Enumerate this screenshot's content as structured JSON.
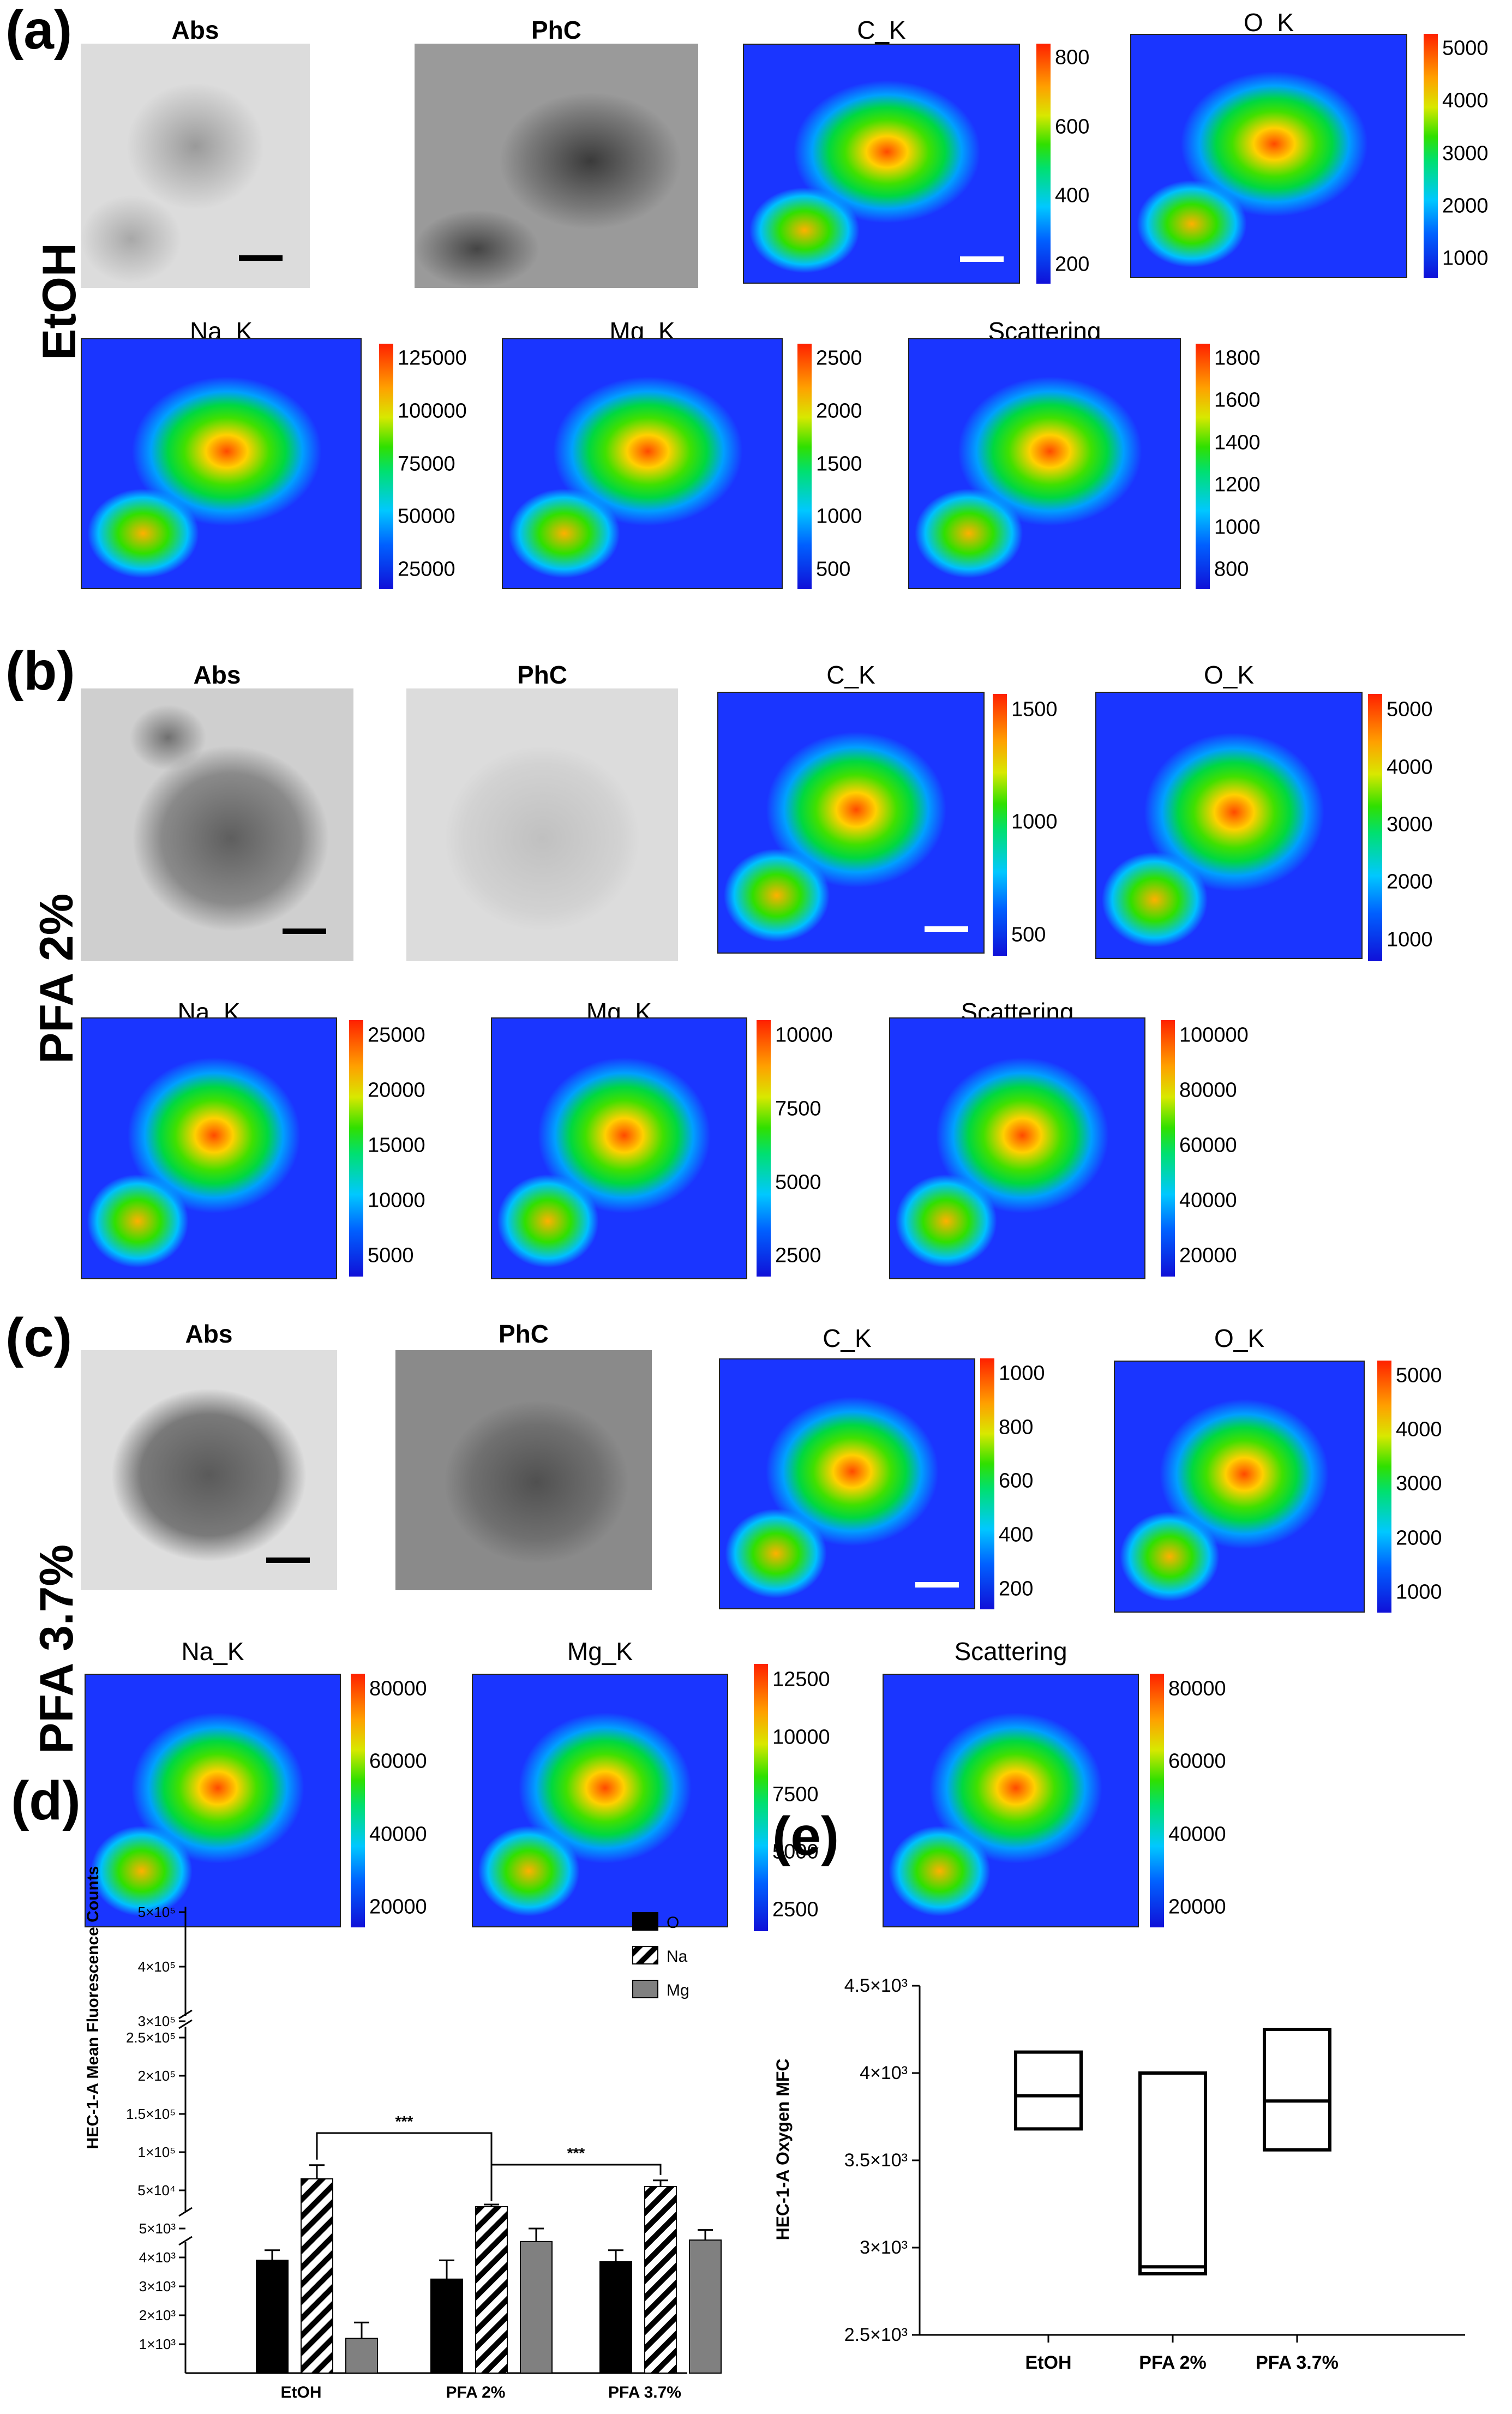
{
  "rows": [
    {
      "letter": "(a)",
      "label": "EtOH",
      "images": [
        {
          "title": "Abs",
          "bold": true,
          "kind": "gray",
          "tone": "abs_a"
        },
        {
          "title": "PhC",
          "bold": true,
          "kind": "gray",
          "tone": "phc_a"
        },
        {
          "title": "C_K",
          "bold": false,
          "kind": "map",
          "ticks": [
            "800",
            "600",
            "400",
            "200"
          ]
        },
        {
          "title": "O_K",
          "bold": false,
          "kind": "map",
          "ticks": [
            "5000",
            "4000",
            "3000",
            "2000",
            "1000"
          ]
        },
        {
          "title": "Na_K",
          "bold": false,
          "kind": "map",
          "ticks": [
            "125000",
            "100000",
            "75000",
            "50000",
            "25000"
          ]
        },
        {
          "title": "Mg_K",
          "bold": false,
          "kind": "map",
          "ticks": [
            "2500",
            "2000",
            "1500",
            "1000",
            "500"
          ]
        },
        {
          "title": "Scattering",
          "bold": false,
          "kind": "map",
          "ticks": [
            "1800",
            "1600",
            "1400",
            "1200",
            "1000",
            "800"
          ]
        }
      ]
    },
    {
      "letter": "(b)",
      "label": "PFA 2%",
      "images": [
        {
          "title": "Abs",
          "bold": true,
          "kind": "gray",
          "tone": "abs_b"
        },
        {
          "title": "PhC",
          "bold": true,
          "kind": "gray",
          "tone": "phc_b"
        },
        {
          "title": "C_K",
          "bold": false,
          "kind": "map",
          "ticks": [
            "1500",
            "1000",
            "500"
          ]
        },
        {
          "title": "O_K",
          "bold": false,
          "kind": "map",
          "ticks": [
            "5000",
            "4000",
            "3000",
            "2000",
            "1000"
          ]
        },
        {
          "title": "Na_K",
          "bold": false,
          "kind": "map",
          "ticks": [
            "25000",
            "20000",
            "15000",
            "10000",
            "5000"
          ]
        },
        {
          "title": "Mg_K",
          "bold": false,
          "kind": "map",
          "ticks": [
            "10000",
            "7500",
            "5000",
            "2500"
          ]
        },
        {
          "title": "Scattering",
          "bold": false,
          "kind": "map",
          "ticks": [
            "100000",
            "80000",
            "60000",
            "40000",
            "20000"
          ]
        }
      ]
    },
    {
      "letter": "(c)",
      "label": "PFA 3.7%",
      "images": [
        {
          "title": "Abs",
          "bold": true,
          "kind": "gray",
          "tone": "abs_c"
        },
        {
          "title": "PhC",
          "bold": true,
          "kind": "gray",
          "tone": "phc_c"
        },
        {
          "title": "C_K",
          "bold": false,
          "kind": "map",
          "ticks": [
            "1000",
            "800",
            "600",
            "400",
            "200"
          ]
        },
        {
          "title": "O_K",
          "bold": false,
          "kind": "map",
          "ticks": [
            "5000",
            "4000",
            "3000",
            "2000",
            "1000"
          ]
        },
        {
          "title": "Na_K",
          "bold": false,
          "kind": "map",
          "ticks": [
            "80000",
            "60000",
            "40000",
            "20000"
          ]
        },
        {
          "title": "Mg_K",
          "bold": false,
          "kind": "map",
          "ticks": [
            "12500",
            "10000",
            "7500",
            "5000",
            "2500"
          ]
        },
        {
          "title": "Scattering",
          "bold": false,
          "kind": "map",
          "ticks": [
            "80000",
            "60000",
            "40000",
            "20000"
          ]
        }
      ]
    }
  ],
  "panel_d_letter": "(d)",
  "panel_e_letter": "(e)",
  "chart_data": [
    {
      "type": "bar",
      "panel": "(d)",
      "ylabel": "HEC-1-A Mean Fluorescence Counts",
      "categories": [
        "EtOH",
        "PFA 2%",
        "PFA 3.7%"
      ],
      "series": [
        {
          "name": "O",
          "values": [
            3900,
            3250,
            3850
          ],
          "errors": [
            350,
            650,
            400
          ]
        },
        {
          "name": "Na",
          "values": [
            65000,
            20000,
            55000
          ],
          "errors": [
            18000,
            4000,
            8000
          ]
        },
        {
          "name": "Mg",
          "values": [
            1200,
            4550,
            4600
          ],
          "errors": [
            550,
            450,
            350
          ]
        }
      ],
      "y_ticks": [
        "1×10³",
        "2×10³",
        "3×10³",
        "4×10³",
        "5×10³",
        "5×10⁴",
        "1×10⁵",
        "1.5×10⁵",
        "2×10⁵",
        "2.5×10⁵",
        "3×10⁵",
        "4×10⁵",
        "5×10⁵"
      ],
      "significance": [
        {
          "from": "EtOH",
          "to": "PFA 2%",
          "label": "***"
        },
        {
          "from": "PFA 2%",
          "to": "PFA 3.7%",
          "label": "***"
        }
      ],
      "legend_placement": "top-right",
      "colors": {
        "O": "#000000",
        "Na": "hatched",
        "Mg": "#808080"
      }
    },
    {
      "type": "box",
      "panel": "(e)",
      "ylabel": "HEC-1-A Oxygen MFC",
      "categories": [
        "EtOH",
        "PFA 2%",
        "PFA 3.7%"
      ],
      "boxes": [
        {
          "q1": 3680,
          "median": 3870,
          "q3": 4120
        },
        {
          "q1": 2850,
          "median": 2890,
          "q3": 4000
        },
        {
          "q1": 3560,
          "median": 3840,
          "q3": 4250
        }
      ],
      "ylim": [
        2500,
        4500
      ],
      "y_ticks": [
        {
          "value": 2500,
          "label": "2.5×10³"
        },
        {
          "value": 3000,
          "label": "3×10³"
        },
        {
          "value": 3500,
          "label": "3.5×10³"
        },
        {
          "value": 4000,
          "label": "4×10³"
        },
        {
          "value": 4500,
          "label": "4.5×10³"
        }
      ]
    }
  ]
}
